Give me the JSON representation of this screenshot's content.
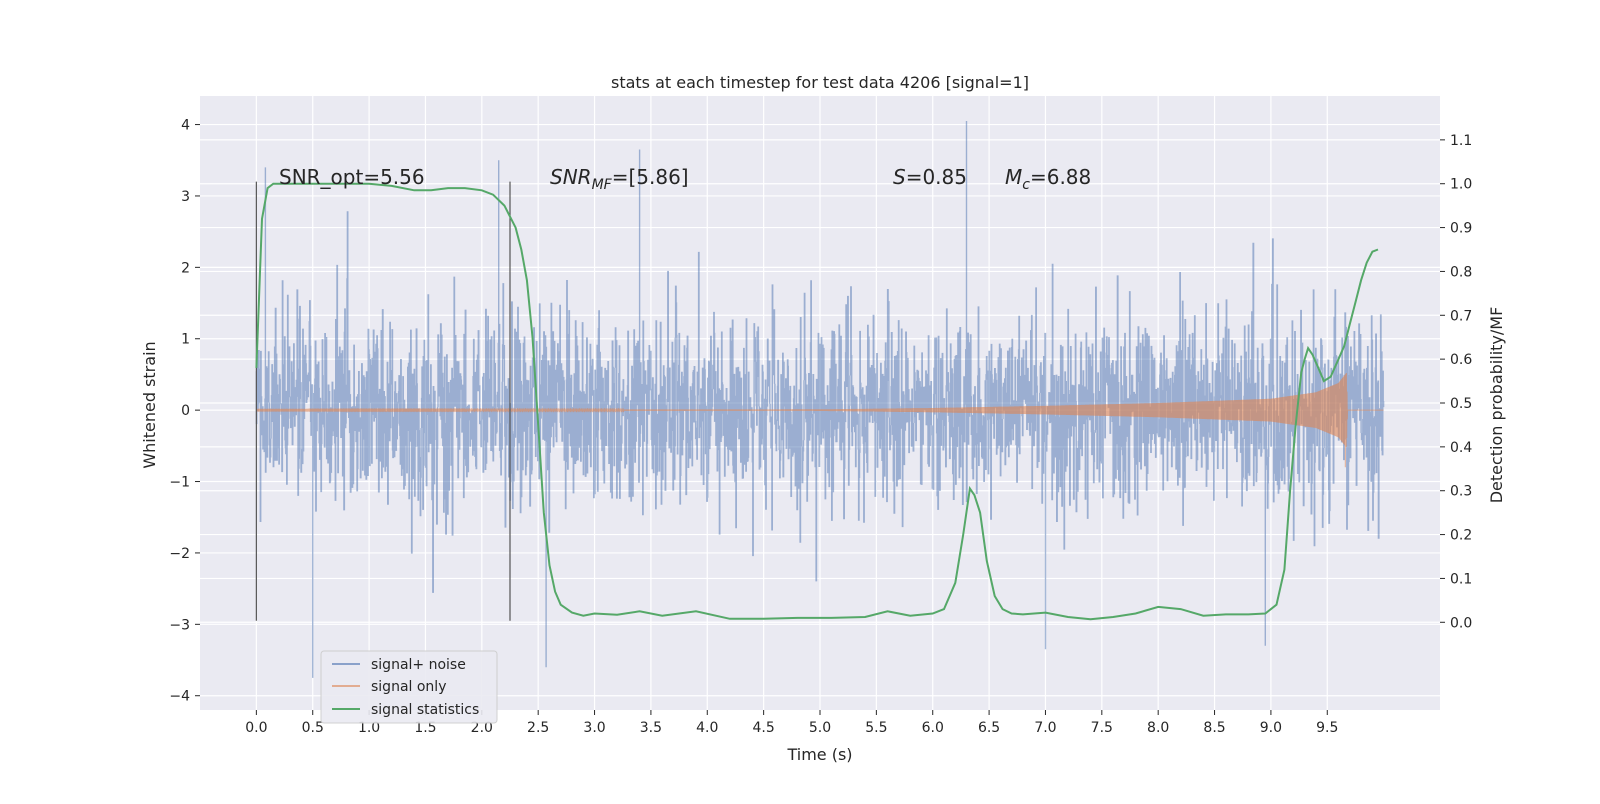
{
  "chart_data": {
    "type": "line",
    "title": "stats at each timestep for test data 4206 [signal=1]",
    "xlabel": "Time (s)",
    "ylabel": "Whitened strain",
    "ylabel_right": "Detection probability/MF",
    "xlim": [
      -0.5,
      10.5
    ],
    "ylim": [
      -4.2,
      4.4
    ],
    "ylim_right": [
      -0.2,
      1.2
    ],
    "x_ticks": [
      "0.0",
      "0.5",
      "1.0",
      "1.5",
      "2.0",
      "2.5",
      "3.0",
      "3.5",
      "4.0",
      "4.5",
      "5.0",
      "5.5",
      "6.0",
      "6.5",
      "7.0",
      "7.5",
      "8.0",
      "8.5",
      "9.0",
      "9.5"
    ],
    "y_ticks": [
      "−4",
      "−3",
      "−2",
      "−1",
      "0",
      "1",
      "2",
      "3",
      "4"
    ],
    "y_ticks_right": [
      "0.0",
      "0.1",
      "0.2",
      "0.3",
      "0.4",
      "0.5",
      "0.6",
      "0.7",
      "0.8",
      "0.9",
      "1.0",
      "1.1"
    ],
    "grid": true,
    "legend_position": "lower-left",
    "annotations": {
      "snr_opt": "SNR_opt=5.56",
      "snr_mf_main": "SNR",
      "snr_mf_sub": "MF",
      "snr_mf_value": "=[5.86]",
      "s_main": "S",
      "s_value": "=0.85",
      "mc_main": "M",
      "mc_sub": "c",
      "mc_value": "=6.88"
    },
    "markers": {
      "x": [
        0.0,
        2.25
      ],
      "ymin": -2.95,
      "ymax": 3.2
    },
    "series": [
      {
        "name": "signal+ noise",
        "color": "#4c72b0",
        "kind": "noise",
        "duration": 10.0,
        "band_approx": [
          -1.5,
          1.6
        ],
        "extreme_peaks": [
          {
            "x": 0.08,
            "y": 3.4
          },
          {
            "x": 0.5,
            "y": -3.75
          },
          {
            "x": 2.15,
            "y": 3.5
          },
          {
            "x": 2.57,
            "y": -3.6
          },
          {
            "x": 3.4,
            "y": 3.65
          },
          {
            "x": 6.3,
            "y": 4.05
          },
          {
            "x": 7.0,
            "y": -3.35
          },
          {
            "x": 8.95,
            "y": -3.3
          }
        ]
      },
      {
        "name": "signal only",
        "color": "#dd8452",
        "kind": "chirp",
        "envelope": [
          {
            "x": 0.0,
            "y": 0.005
          },
          {
            "x": 5.0,
            "y": 0.01
          },
          {
            "x": 6.0,
            "y": 0.03
          },
          {
            "x": 7.0,
            "y": 0.06
          },
          {
            "x": 8.0,
            "y": 0.1
          },
          {
            "x": 9.0,
            "y": 0.16
          },
          {
            "x": 9.4,
            "y": 0.25
          },
          {
            "x": 9.6,
            "y": 0.38
          },
          {
            "x": 9.67,
            "y": 0.52
          },
          {
            "x": 9.68,
            "y": 0.0
          },
          {
            "x": 10.0,
            "y": 0.0
          }
        ],
        "end_dip": {
          "x": 9.66,
          "y": -0.8
        }
      },
      {
        "name": "signal statistics",
        "color": "#55a868",
        "axis": "right",
        "x": [
          0.0,
          0.05,
          0.1,
          0.15,
          0.2,
          0.3,
          0.5,
          0.8,
          1.0,
          1.2,
          1.4,
          1.55,
          1.7,
          1.85,
          2.0,
          2.1,
          2.2,
          2.3,
          2.35,
          2.4,
          2.45,
          2.5,
          2.55,
          2.6,
          2.65,
          2.7,
          2.8,
          2.9,
          3.0,
          3.2,
          3.4,
          3.6,
          3.9,
          4.2,
          4.5,
          4.8,
          5.1,
          5.4,
          5.6,
          5.8,
          6.0,
          6.1,
          6.2,
          6.27,
          6.33,
          6.37,
          6.42,
          6.48,
          6.55,
          6.62,
          6.7,
          6.8,
          7.0,
          7.2,
          7.4,
          7.6,
          7.8,
          8.0,
          8.2,
          8.4,
          8.6,
          8.8,
          8.95,
          9.05,
          9.12,
          9.17,
          9.22,
          9.27,
          9.3,
          9.33,
          9.37,
          9.42,
          9.47,
          9.53,
          9.6,
          9.65,
          9.7,
          9.75,
          9.8,
          9.85,
          9.9,
          9.95
        ],
        "y": [
          0.58,
          0.92,
          0.99,
          1.0,
          1.0,
          1.0,
          1.0,
          1.0,
          1.0,
          0.995,
          0.985,
          0.985,
          0.99,
          0.99,
          0.985,
          0.975,
          0.95,
          0.9,
          0.85,
          0.78,
          0.65,
          0.45,
          0.25,
          0.13,
          0.07,
          0.04,
          0.022,
          0.015,
          0.02,
          0.017,
          0.025,
          0.015,
          0.025,
          0.008,
          0.008,
          0.01,
          0.01,
          0.012,
          0.025,
          0.015,
          0.02,
          0.03,
          0.09,
          0.2,
          0.305,
          0.29,
          0.25,
          0.14,
          0.06,
          0.03,
          0.02,
          0.018,
          0.022,
          0.012,
          0.007,
          0.012,
          0.02,
          0.035,
          0.03,
          0.015,
          0.018,
          0.018,
          0.02,
          0.04,
          0.12,
          0.3,
          0.45,
          0.57,
          0.6,
          0.625,
          0.61,
          0.58,
          0.55,
          0.56,
          0.6,
          0.63,
          0.68,
          0.73,
          0.78,
          0.82,
          0.845,
          0.85
        ]
      }
    ]
  }
}
